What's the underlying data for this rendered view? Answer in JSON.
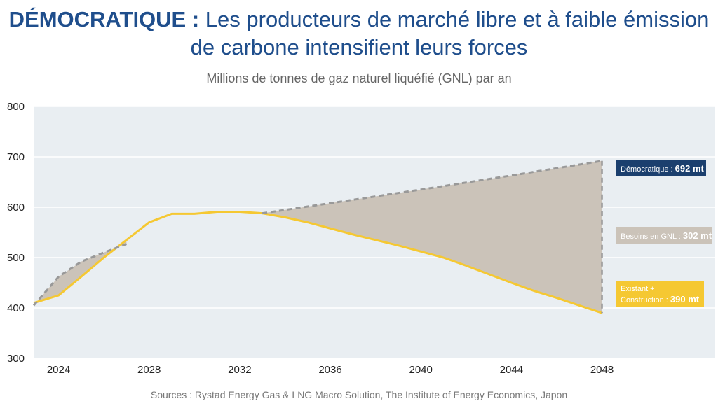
{
  "title_bold": "DÉMOCRATIQUE :",
  "title_rest_line1": "Les producteurs de marché libre et à faible émission",
  "title_line2": "de carbone intensifient leurs forces",
  "subtitle": "Millions de tonnes de gaz naturel liquéfié (GNL) par an",
  "source": "Sources : Rystad Energy Gas & LNG Macro Solution, The Institute of Energy Economics, Japon",
  "colors": {
    "supply": "#f5c832",
    "demand": "#999999",
    "gap_fill": "#cbc3b9",
    "plot_bg": "#e9eef2",
    "dem_label_bg": "#1b3f6e",
    "existing_label_bg": "#f5c832"
  },
  "chart_data": {
    "type": "area",
    "ylim": [
      300,
      800
    ],
    "yticks": [
      300,
      400,
      500,
      600,
      700,
      800
    ],
    "xlim": [
      2022.9,
      2053
    ],
    "xticks": [
      2024,
      2028,
      2032,
      2036,
      2040,
      2044,
      2048
    ],
    "series": [
      {
        "name": "Existant + Construction",
        "x": [
          2022.9,
          2024,
          2025,
          2026,
          2027,
          2028,
          2029,
          2030,
          2031,
          2032,
          2033,
          2034,
          2035,
          2036,
          2037,
          2038,
          2039,
          2040,
          2041,
          2042,
          2043,
          2044,
          2045,
          2046,
          2047,
          2048
        ],
        "values": [
          410,
          425,
          462,
          500,
          535,
          570,
          587,
          587,
          591,
          591,
          588,
          580,
          570,
          558,
          546,
          535,
          524,
          512,
          500,
          484,
          467,
          450,
          434,
          420,
          405,
          390
        ]
      },
      {
        "name": "Démocratique",
        "x": [
          2022.9,
          2024,
          2025,
          2026,
          2027,
          2033,
          2036,
          2040,
          2044,
          2048
        ],
        "values": [
          405,
          462,
          492,
          510,
          527,
          588,
          608,
          635,
          663,
          692
        ]
      }
    ],
    "labels": {
      "democratique_label": "Démocratique :",
      "democratique_value": "692 mt",
      "besoins_label": "Besoins en GNL :",
      "besoins_value": "302 mt",
      "existant_label_1": "Existant +",
      "existant_label_2": "Construction :",
      "existant_value": "390 mt"
    }
  }
}
